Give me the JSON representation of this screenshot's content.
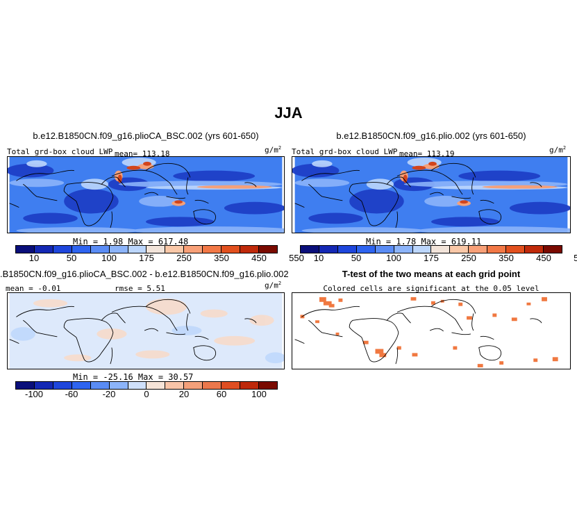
{
  "title": "JJA",
  "panels": {
    "top_left": {
      "title": "b.e12.B1850CN.f09_g16.plioCA_BSC.002 (yrs 601-650)",
      "var_label": "Total grd-box cloud LWP",
      "mean_text": "mean= 113.18",
      "units": "g/m",
      "units_sup": "2",
      "minmax": "Min =    1.98  Max = 617.48"
    },
    "top_right": {
      "title": "b.e12.B1850CN.f09_g16.plio.002 (yrs 601-650)",
      "var_label": "Total grd-box cloud LWP",
      "mean_text": "mean= 113.19",
      "units": "g/m",
      "units_sup": "2",
      "minmax": "Min =    1.78  Max = 619.11"
    },
    "bottom_left": {
      "title": ".B1850CN.f09_g16.plioCA_BSC.002 - b.e12.B1850CN.f09_g16.plio.002",
      "mean_text": "mean =  -0.01",
      "rmse_text": "rmse =   5.51",
      "units": "g/m",
      "units_sup": "2",
      "minmax": "Min = -25.16  Max =  30.57"
    },
    "bottom_right": {
      "title": "T-test of the two means at each grid point",
      "subtitle": "Colored cells are significant at the 0.05 level"
    }
  },
  "colorbars": {
    "abs_colors": [
      "#0a0f7a",
      "#1428b4",
      "#1e46dc",
      "#2e64f0",
      "#5a8cf5",
      "#8cb4fa",
      "#bcd6fc",
      "#f2e4da",
      "#fac8a8",
      "#f8a078",
      "#f27846",
      "#e2501e",
      "#c02a0a",
      "#7a0a00"
    ],
    "abs_ticks": [
      "10",
      "50",
      "100",
      "175",
      "250",
      "350",
      "450",
      "550"
    ],
    "diff_colors": [
      "#0a0f7a",
      "#1428b4",
      "#1e46dc",
      "#2e64f0",
      "#5a8cf5",
      "#8cb4fa",
      "#cfe0fb",
      "#f6e4d8",
      "#f8c4a8",
      "#f4a07a",
      "#ec784c",
      "#e04e22",
      "#be280a",
      "#7a0a00"
    ],
    "diff_ticks": [
      "-100",
      "-60",
      "-20",
      "0",
      "20",
      "60",
      "100"
    ]
  },
  "map_colors": {
    "ocean_base": "#3f7ef0",
    "dry_core": "#1e3fc6",
    "moist": "#bcd6fc",
    "wet": "#f4a07a",
    "very_wet": "#d2441c",
    "diff_base": "#dde9fb",
    "diff_pos": "#f6dccd",
    "signif": "#f07840"
  }
}
